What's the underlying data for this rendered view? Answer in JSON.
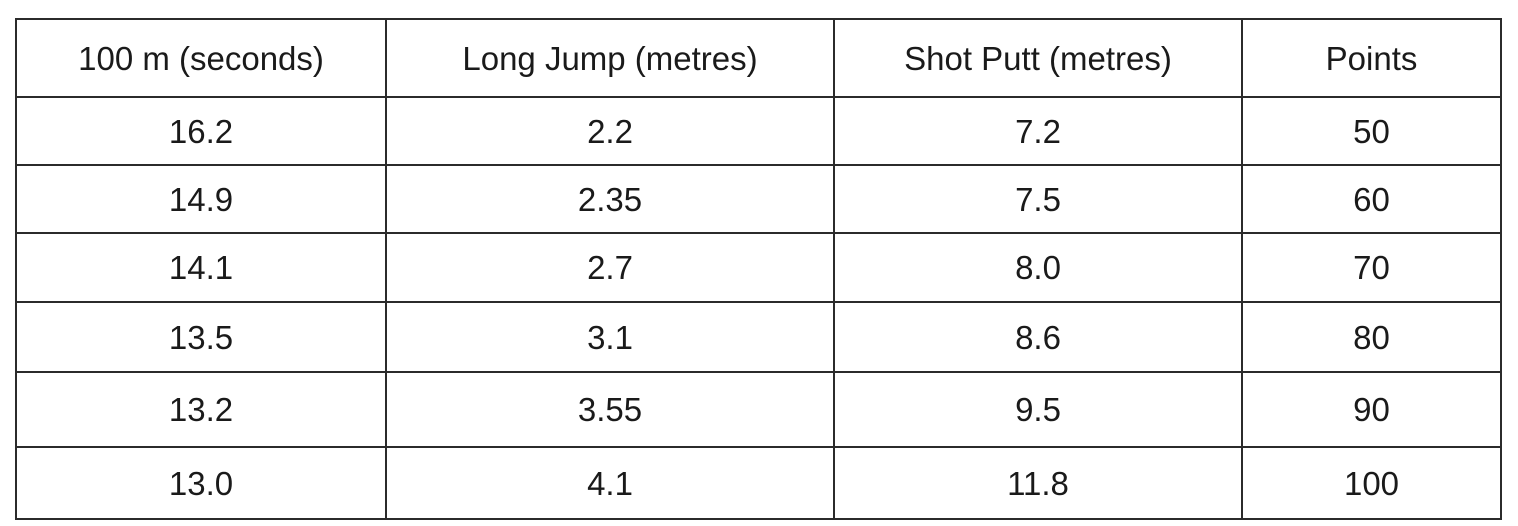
{
  "table": {
    "headers": [
      "100 m (seconds)",
      "Long Jump (metres)",
      "Shot Putt (metres)",
      "Points"
    ],
    "rows": [
      [
        "16.2",
        "2.2",
        "7.2",
        "50"
      ],
      [
        "14.9",
        "2.35",
        "7.5",
        "60"
      ],
      [
        "14.1",
        "2.7",
        "8.0",
        "70"
      ],
      [
        "13.5",
        "3.1",
        "8.6",
        "80"
      ],
      [
        "13.2",
        "3.55",
        "9.5",
        "90"
      ],
      [
        "13.0",
        "4.1",
        "11.8",
        "100"
      ]
    ]
  }
}
